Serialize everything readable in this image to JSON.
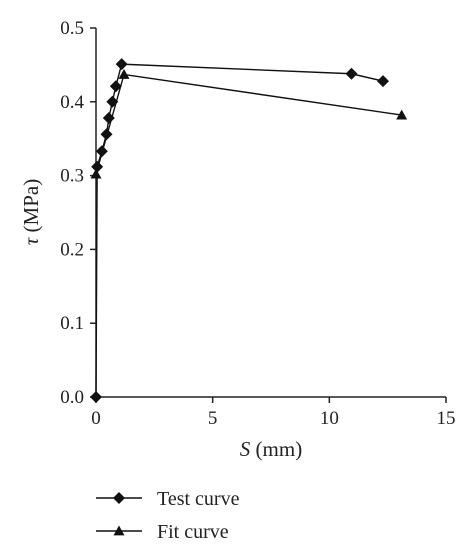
{
  "chart_data": {
    "type": "line",
    "title": "",
    "xlabel": {
      "symbol": "S",
      "unit": " (mm)"
    },
    "ylabel": {
      "symbol": "τ",
      "unit": " (MPa)"
    },
    "xlim": [
      0,
      15
    ],
    "ylim": [
      0,
      0.5
    ],
    "xticks": [
      0,
      5,
      10,
      15
    ],
    "xtick_labels": [
      "0",
      "5",
      "10",
      "15"
    ],
    "yticks": [
      0,
      0.1,
      0.2,
      0.3,
      0.4,
      0.5
    ],
    "ytick_labels": [
      "0.0",
      "0.1",
      "0.2",
      "0.3",
      "0.4",
      "0.5"
    ],
    "grid": false,
    "legend_position": "bottom",
    "series": [
      {
        "name": "Test curve",
        "marker": "diamond",
        "color": "#111111",
        "x": [
          0.0,
          0.05,
          0.25,
          0.45,
          0.55,
          0.7,
          0.85,
          1.1,
          10.95,
          12.3
        ],
        "y": [
          0.0,
          0.312,
          0.333,
          0.356,
          0.378,
          0.4,
          0.421,
          0.451,
          0.438,
          0.428
        ]
      },
      {
        "name": "Fit curve",
        "marker": "triangle",
        "color": "#111111",
        "x": [
          0.0,
          1.2,
          13.1
        ],
        "y": [
          0.302,
          0.437,
          0.382
        ]
      }
    ]
  }
}
